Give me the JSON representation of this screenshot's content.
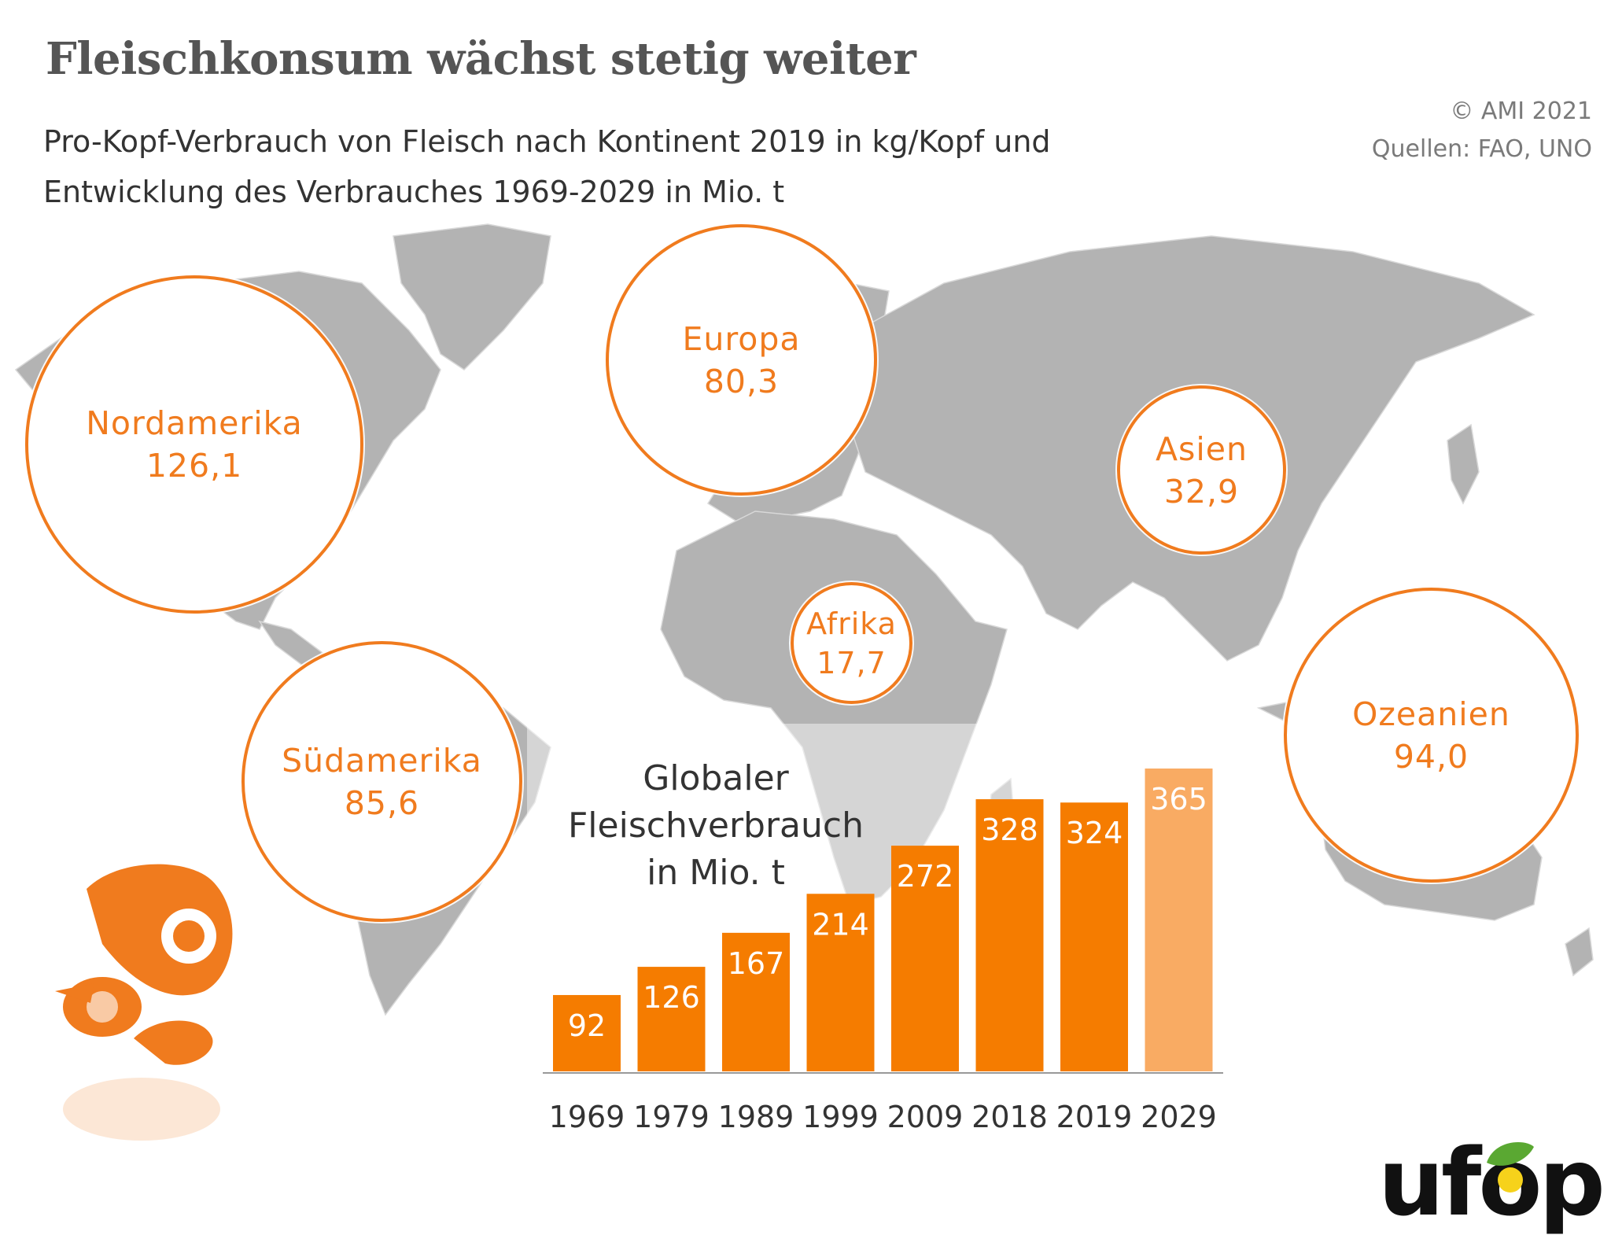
{
  "title": "Fleischkonsum wächst stetig weiter",
  "subtitle_line1": "Pro-Kopf-Verbrauch von Fleisch nach Kontinent 2019 in kg/Kopf und",
  "subtitle_line2": "Entwicklung des Verbrauches 1969-2029 in Mio. t",
  "copyright": "© AMI 2021",
  "sources": "Quellen: FAO, UNO",
  "colors": {
    "accent": "#f07b1e",
    "bar": "#f57c00",
    "bar_forecast": "#f9ab63",
    "map": "#b3b3b3"
  },
  "continents": [
    {
      "name": "Nordamerika",
      "value": "126,1"
    },
    {
      "name": "Europa",
      "value": "80,3"
    },
    {
      "name": "Asien",
      "value": "32,9"
    },
    {
      "name": "Afrika",
      "value": "17,7"
    },
    {
      "name": "Südamerika",
      "value": "85,6"
    },
    {
      "name": "Ozeanien",
      "value": "94,0"
    }
  ],
  "chart_title": [
    "Globaler",
    "Fleischverbrauch",
    "in Mio. t"
  ],
  "logo_text": "ufop",
  "chart_data": {
    "type": "bar",
    "title": "Globaler Fleischverbrauch in Mio. t",
    "categories": [
      "1969",
      "1979",
      "1989",
      "1999",
      "2009",
      "2018",
      "2019",
      "2029"
    ],
    "values": [
      92,
      126,
      167,
      214,
      272,
      328,
      324,
      365
    ],
    "forecast": [
      false,
      false,
      false,
      false,
      false,
      false,
      false,
      true
    ],
    "ylim": [
      0,
      400
    ],
    "grid": false,
    "legend": "none"
  }
}
